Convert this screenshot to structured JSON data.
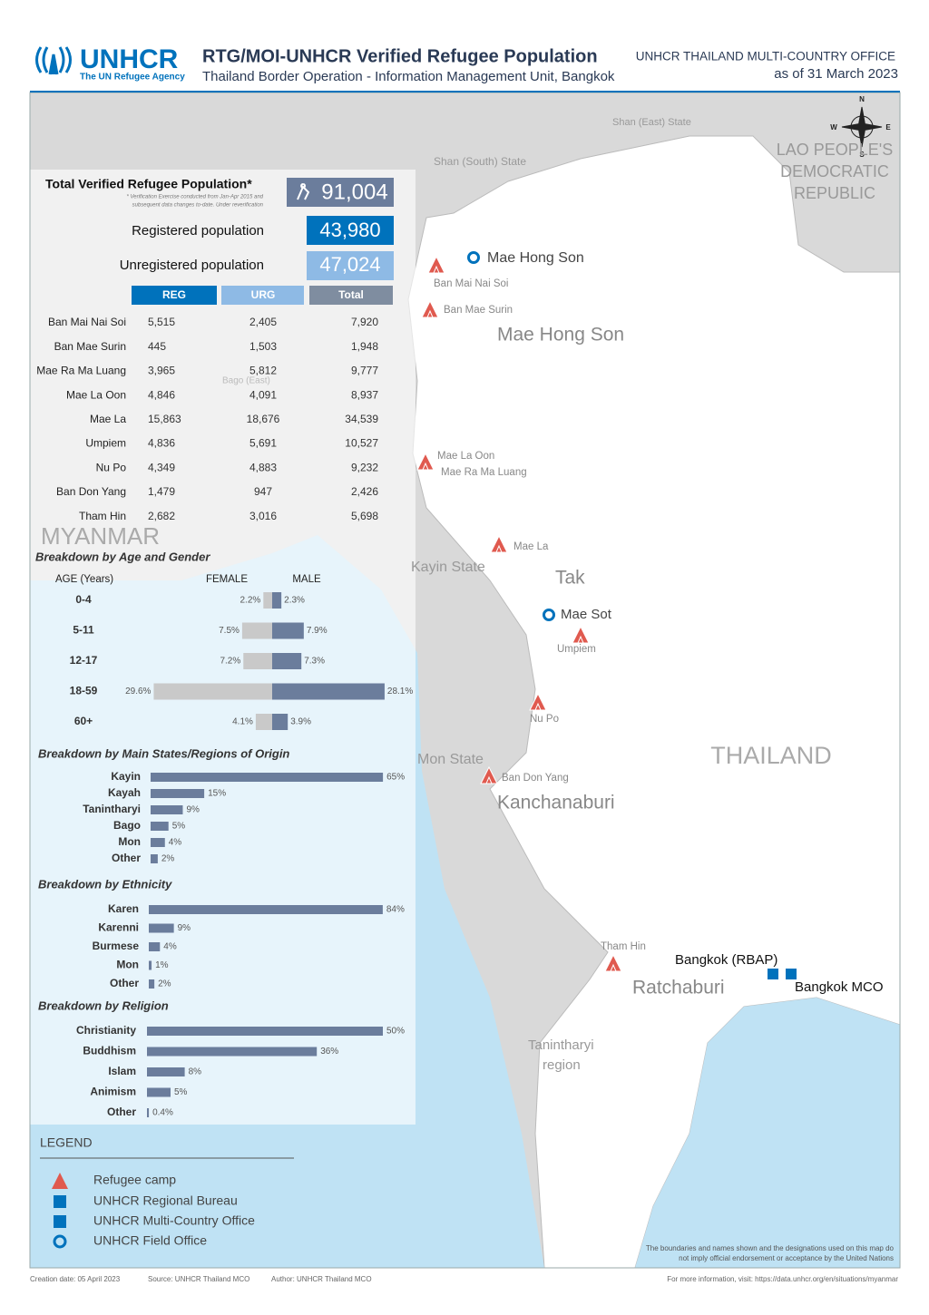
{
  "header": {
    "logo": "UNHCR",
    "tagline": "The UN Refugee Agency",
    "title": "RTG/MOI-UNHCR Verified Refugee Population",
    "subtitle": "Thailand Border Operation - Information Management Unit, Bangkok",
    "office": "UNHCR THAILAND MULTI-COUNTRY OFFICE",
    "date": "as of 31 March 2023"
  },
  "compass": [
    "N",
    "W",
    "E",
    "S"
  ],
  "map_labels": [
    "Shan (East) State",
    "Shan (South) State",
    "LAO PEOPLE'S",
    "DEMOCRATIC",
    "REPUBLIC",
    "Mae Hong Son",
    "Ban Mai Nai Soi",
    "Ban Mae Surin",
    "Mae Hong Son",
    "Mae La Oon",
    "Mae Ra Ma Luang",
    "Mae La",
    "Kayin State",
    "Tak",
    "Mae Sot",
    "Umpiem",
    "Nu Po",
    "THAILAND",
    "Mon State",
    "Ban Don Yang",
    "Kanchanaburi",
    "Tham Hin",
    "Bangkok (RBAP)",
    "Bangkok MCO",
    "Ratchaburi",
    "Tanintharyi",
    "region",
    "MYANMAR",
    "Bago (East)"
  ],
  "summary": {
    "title": "Total Verified Refugee Population*",
    "note": [
      "* Verification Exercise conducted from Jan-Apr 2015 and",
      "subsequent data changes to-date. Under reverification"
    ],
    "total": "91,004",
    "registered_label": "Registered population",
    "registered": "43,980",
    "unregistered_label": "Unregistered population",
    "unregistered": "47,024"
  },
  "table": {
    "headers": [
      "REG",
      "URG",
      "Total"
    ],
    "rows": [
      [
        "Ban Mai Nai Soi",
        "5,515",
        "2,405",
        "7,920"
      ],
      [
        "Ban Mae Surin",
        "445",
        "1,503",
        "1,948"
      ],
      [
        "Mae Ra Ma Luang",
        "3,965",
        "5,812",
        "9,777"
      ],
      [
        "Mae La Oon",
        "4,846",
        "4,091",
        "8,937"
      ],
      [
        "Mae La",
        "15,863",
        "18,676",
        "34,539"
      ],
      [
        "Umpiem",
        "4,836",
        "5,691",
        "10,527"
      ],
      [
        "Nu Po",
        "4,349",
        "4,883",
        "9,232"
      ],
      [
        "Ban Don Yang",
        "1,479",
        "947",
        "2,426"
      ],
      [
        "Tham Hin",
        "2,682",
        "3,016",
        "5,698"
      ]
    ]
  },
  "age_gender": {
    "type": "bar",
    "title": "Breakdown by Age and Gender",
    "axis_label": "AGE (Years)",
    "categories": [
      "0-4",
      "5-11",
      "12-17",
      "18-59",
      "60+"
    ],
    "series": [
      {
        "name": "FEMALE",
        "color": "#c9c9c9",
        "values": [
          2.2,
          7.5,
          7.2,
          29.6,
          4.1
        ],
        "value_labels": [
          "2.2%",
          "7.5%",
          "7.2%",
          "29.6%",
          "4.1%"
        ]
      },
      {
        "name": "MALE",
        "color": "#6b7d9c",
        "values": [
          2.3,
          7.9,
          7.3,
          28.1,
          3.9
        ],
        "value_labels": [
          "2.3%",
          "7.9%",
          "7.3%",
          "28.1%",
          "3.9%"
        ]
      }
    ]
  },
  "origin": {
    "type": "bar",
    "title": "Breakdown by Main States/Regions of Origin",
    "color": "#6b7d9c",
    "categories": [
      "Kayin",
      "Kayah",
      "Tanintharyi",
      "Bago",
      "Mon",
      "Other"
    ],
    "values": [
      65,
      15,
      9,
      5,
      4,
      2
    ],
    "value_labels": [
      "65%",
      "15%",
      "9%",
      "5%",
      "4%",
      "2%"
    ]
  },
  "ethnicity": {
    "type": "bar",
    "title": "Breakdown by Ethnicity",
    "color": "#6b7d9c",
    "categories": [
      "Karen",
      "Karenni",
      "Burmese",
      "Mon",
      "Other"
    ],
    "values": [
      84,
      9,
      4,
      1,
      2
    ],
    "value_labels": [
      "84%",
      "9%",
      "4%",
      "1%",
      "2%"
    ]
  },
  "religion": {
    "type": "bar",
    "title": "Breakdown by Religion",
    "color": "#6b7d9c",
    "categories": [
      "Christianity",
      "Buddhism",
      "Islam",
      "Animism",
      "Other"
    ],
    "values": [
      50,
      36,
      8,
      5,
      0.4
    ],
    "value_labels": [
      "50%",
      "36%",
      "8%",
      "5%",
      "0.4%"
    ]
  },
  "legend": {
    "title": "LEGEND",
    "items": [
      "Refugee camp",
      "UNHCR Regional Bureau",
      "UNHCR Multi-Country Office",
      "UNHCR Field Office"
    ]
  },
  "footer": {
    "creation": "Creation date: 05 April 2023",
    "source": "Source: UNHCR Thailand MCO",
    "author": "Author: UNHCR Thailand MCO",
    "more": "For more information, visit: https://data.unhcr.org/en/situations/myanmar",
    "disclaimer": [
      "The boundaries and names shown and the designations used on this map do",
      "not imply official endorsement or acceptance by the United Nations"
    ]
  }
}
